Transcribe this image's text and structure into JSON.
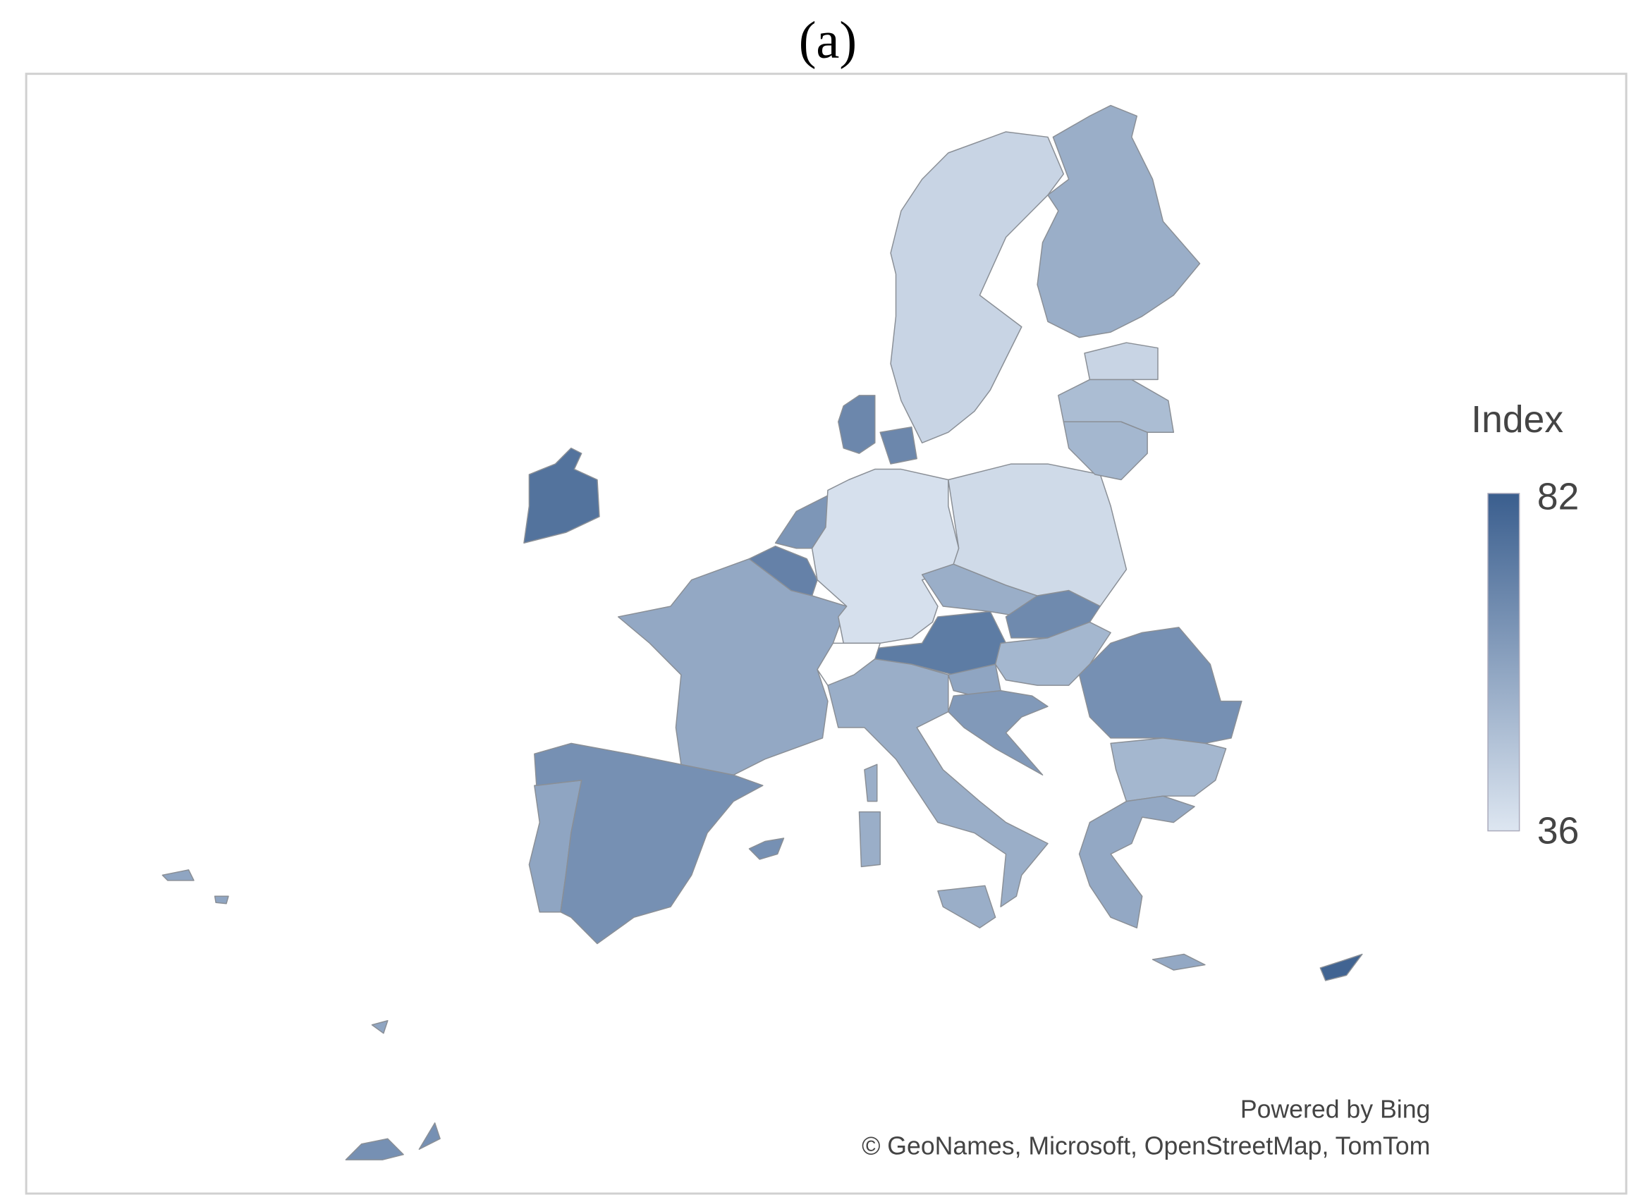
{
  "title": "(a)",
  "map": {
    "legend": {
      "title": "Index",
      "max": 82,
      "min": 36,
      "color_low": "#dde6f1",
      "color_high": "#3a5e8e"
    },
    "region_values": [
      75,
      58,
      65,
      57,
      70,
      63,
      38,
      68,
      68,
      72,
      55,
      67,
      52,
      58,
      62,
      40,
      52,
      50,
      42,
      55,
      42,
      55,
      55,
      55,
      55,
      65,
      52,
      57,
      57,
      80,
      65,
      65,
      58,
      58,
      58,
      65
    ]
  },
  "attribution": [
    "Powered by Bing",
    "© GeoNames, Microsoft, OpenStreetMap, TomTom"
  ]
}
